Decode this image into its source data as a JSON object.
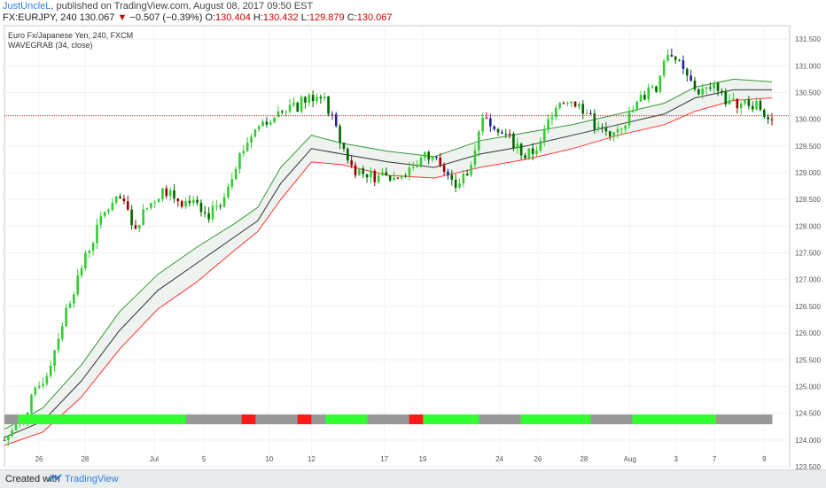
{
  "header": {
    "user": "JustUncleL",
    "published": ", published on TradingView.com, August 08, 2017 09:50 EST",
    "symbol": "FX:EURJPY, 240",
    "last": "130.067",
    "arrow": "▼",
    "change": "−0.507 (−0.39%)",
    "o_label": "O:",
    "o": "130.404",
    "h_label": "H:",
    "h": "130.432",
    "l_label": "L:",
    "l": "129.879",
    "c_label": "C:",
    "c": "130.067"
  },
  "legend": {
    "title": "Euro Fx/Japanese Yen, 240, FXCM",
    "indicator": "WAVEGRAB (34, close)"
  },
  "footer": {
    "created_with": "Created with",
    "brand": "TradingView"
  },
  "colors": {
    "up": "#33cc33",
    "down": "#006600",
    "bull_strong": "#00ccff",
    "bear_strong": "#990000",
    "blue": "#1f1f99",
    "wave_upper": "#339933",
    "wave_mid": "#333333",
    "wave_lower": "#ff3333",
    "wave_fill": "#eef3ef",
    "bar_green": "#33ff33",
    "bar_grey": "#999999",
    "bar_red": "#ff1a1a",
    "price_line": "#cc3333"
  },
  "chart_data": {
    "type": "candlestick",
    "title": "Euro Fx/Japanese Yen, 240, FXCM",
    "ylim": [
      123.5,
      131.75
    ],
    "y_ticks": [
      "131.500",
      "131.000",
      "130.500",
      "130.000",
      "129.500",
      "129.000",
      "128.500",
      "128.000",
      "127.500",
      "127.000",
      "126.500",
      "126.000",
      "125.500",
      "125.000",
      "124.500",
      "124.000",
      "123.500"
    ],
    "x_ticks": [
      "26",
      "28",
      "Jul",
      "5",
      "10",
      "12",
      "17",
      "19",
      "24",
      "26",
      "28",
      "Aug",
      "3",
      "7",
      "9"
    ],
    "last_price": "130.067",
    "wave_points": [
      {
        "t": 0,
        "upper": 124.2,
        "mid": 124.05,
        "lower": 123.9
      },
      {
        "t": 0.05,
        "upper": 124.6,
        "mid": 124.35,
        "lower": 124.15
      },
      {
        "t": 0.1,
        "upper": 125.4,
        "mid": 125.1,
        "lower": 124.8
      },
      {
        "t": 0.15,
        "upper": 126.4,
        "mid": 126.05,
        "lower": 125.7
      },
      {
        "t": 0.2,
        "upper": 127.1,
        "mid": 126.8,
        "lower": 126.45
      },
      {
        "t": 0.25,
        "upper": 127.6,
        "mid": 127.3,
        "lower": 126.95
      },
      {
        "t": 0.3,
        "upper": 128.05,
        "mid": 127.8,
        "lower": 127.55
      },
      {
        "t": 0.33,
        "upper": 128.35,
        "mid": 128.1,
        "lower": 127.9
      },
      {
        "t": 0.36,
        "upper": 129.1,
        "mid": 128.8,
        "lower": 128.5
      },
      {
        "t": 0.4,
        "upper": 129.7,
        "mid": 129.45,
        "lower": 129.2
      },
      {
        "t": 0.44,
        "upper": 129.55,
        "mid": 129.35,
        "lower": 129.15
      },
      {
        "t": 0.5,
        "upper": 129.4,
        "mid": 129.2,
        "lower": 128.95
      },
      {
        "t": 0.56,
        "upper": 129.3,
        "mid": 129.1,
        "lower": 128.9
      },
      {
        "t": 0.62,
        "upper": 129.6,
        "mid": 129.35,
        "lower": 129.1
      },
      {
        "t": 0.68,
        "upper": 129.75,
        "mid": 129.5,
        "lower": 129.25
      },
      {
        "t": 0.74,
        "upper": 129.9,
        "mid": 129.7,
        "lower": 129.45
      },
      {
        "t": 0.8,
        "upper": 130.1,
        "mid": 129.9,
        "lower": 129.7
      },
      {
        "t": 0.86,
        "upper": 130.3,
        "mid": 130.1,
        "lower": 129.9
      },
      {
        "t": 0.9,
        "upper": 130.6,
        "mid": 130.4,
        "lower": 130.15
      },
      {
        "t": 0.95,
        "upper": 130.75,
        "mid": 130.55,
        "lower": 130.35
      },
      {
        "t": 1.0,
        "upper": 130.7,
        "mid": 130.55,
        "lower": 130.4
      }
    ],
    "candle_path": [
      124.0,
      124.3,
      124.8,
      125.3,
      126.2,
      127.0,
      127.7,
      128.3,
      128.5,
      128.0,
      128.4,
      128.7,
      128.5,
      128.4,
      128.2,
      128.5,
      129.2,
      129.7,
      130.0,
      130.1,
      130.2,
      130.4,
      130.5,
      129.7,
      129.1,
      129.0,
      128.9,
      128.9,
      129.1,
      129.3,
      129.2,
      128.7,
      129.0,
      130.1,
      129.9,
      129.6,
      129.3,
      129.5,
      130.3,
      130.4,
      130.2,
      129.8,
      129.8,
      130.0,
      130.4,
      130.6,
      131.3,
      130.8,
      130.5,
      130.6,
      130.3,
      130.3,
      130.3,
      130.0
    ],
    "bottom_bar": [
      "grey",
      "green",
      "green",
      "green",
      "green",
      "green",
      "green",
      "green",
      "green",
      "green",
      "green",
      "green",
      "green",
      "grey",
      "grey",
      "grey",
      "grey",
      "red",
      "grey",
      "grey",
      "grey",
      "red",
      "grey",
      "green",
      "green",
      "green",
      "grey",
      "grey",
      "grey",
      "red",
      "green",
      "green",
      "green",
      "green",
      "grey",
      "grey",
      "grey",
      "green",
      "green",
      "green",
      "green",
      "green",
      "grey",
      "grey",
      "grey",
      "green",
      "green",
      "green",
      "green",
      "green",
      "green",
      "grey",
      "grey",
      "grey",
      "grey"
    ]
  }
}
